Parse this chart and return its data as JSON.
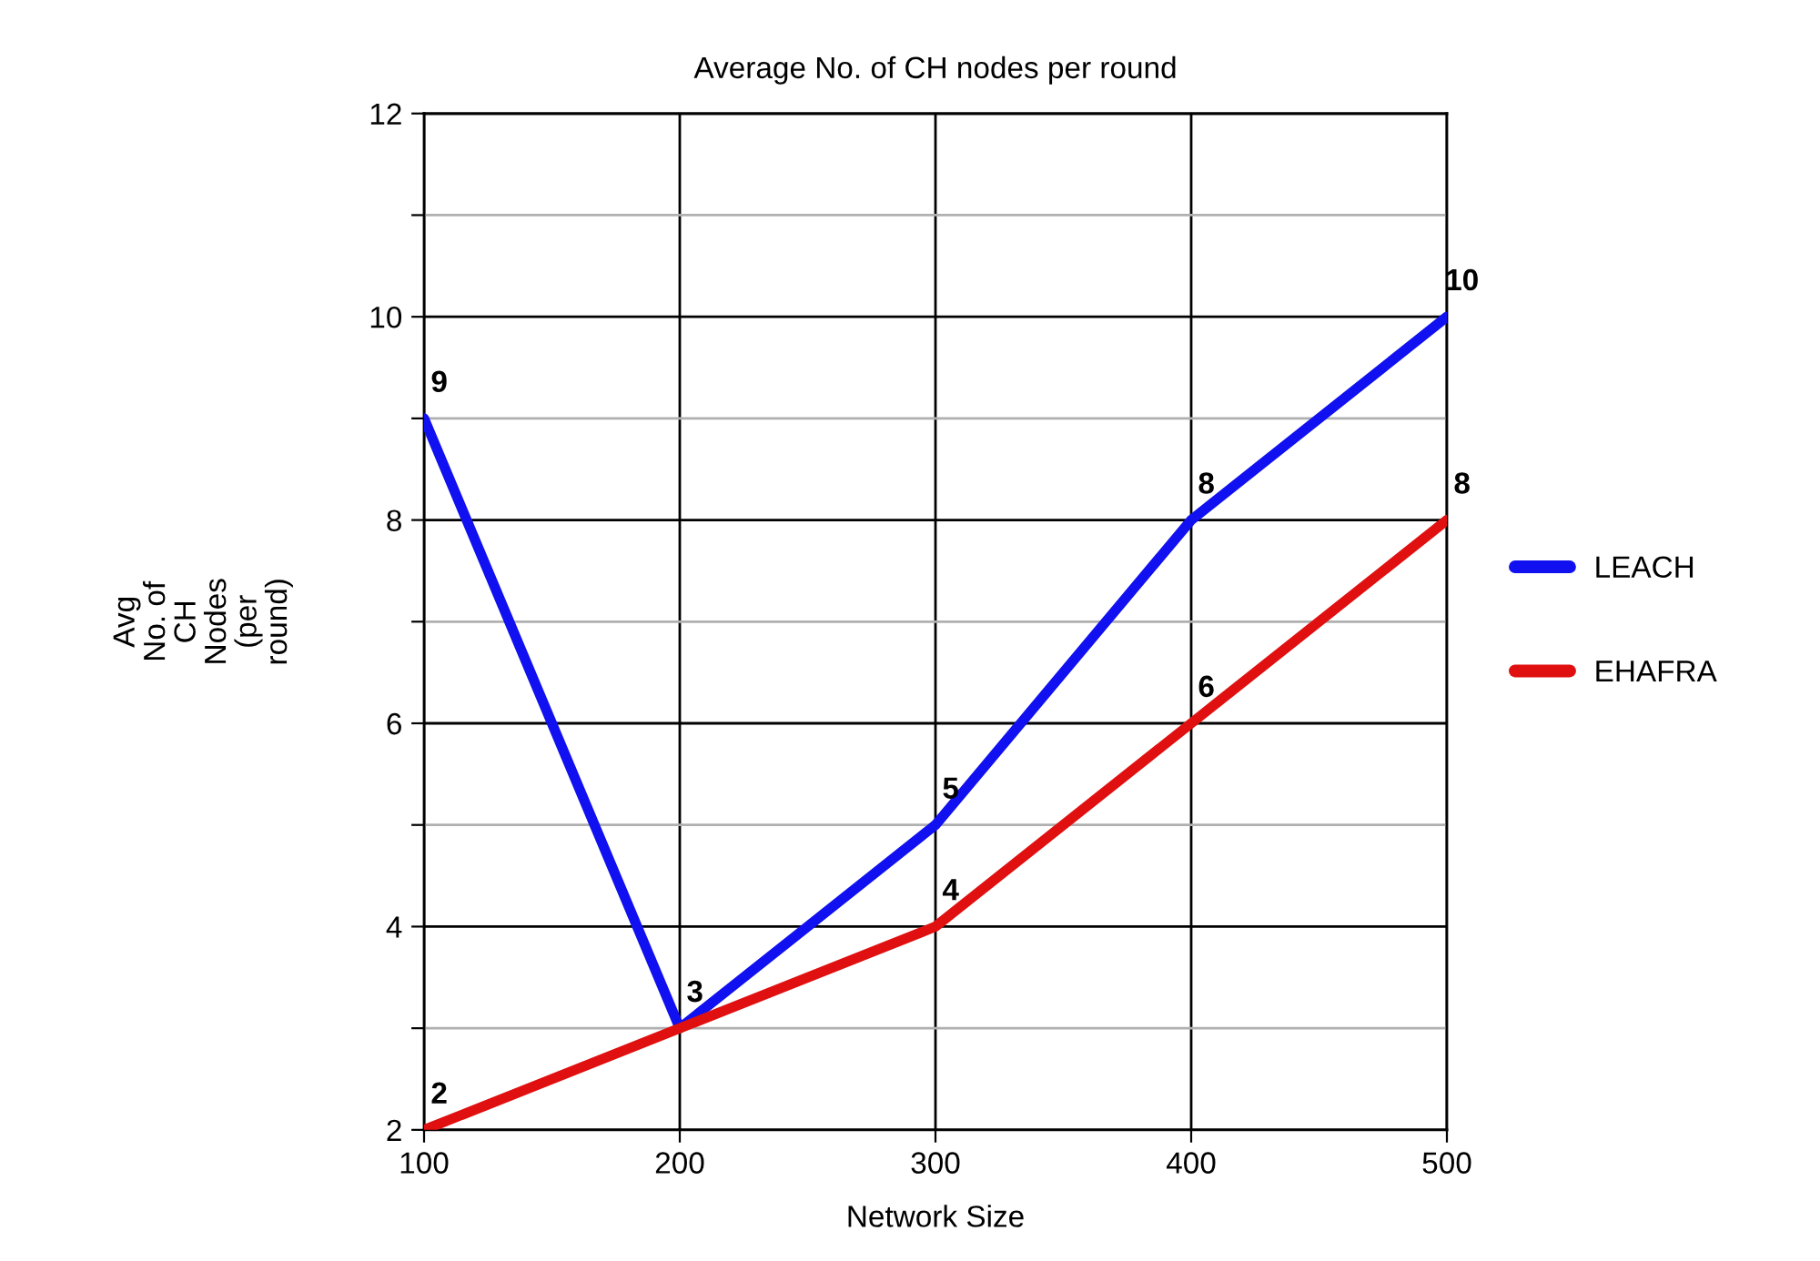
{
  "chart_data": {
    "type": "line",
    "title": "Average No. of CH nodes per round",
    "xlabel": "Network Size",
    "ylabel": "Avg\nNo. of\nCH\nNodes\n(per\nround)",
    "x": [
      100,
      200,
      300,
      400,
      500
    ],
    "series": [
      {
        "name": "LEACH",
        "color": "#1010f0",
        "values": [
          9,
          3,
          5,
          8,
          10
        ],
        "value_labels": [
          "9",
          "3",
          "5",
          "8",
          "10"
        ]
      },
      {
        "name": "EHAFRA",
        "color": "#e01010",
        "values": [
          2,
          3,
          4,
          6,
          8
        ],
        "value_labels": [
          "2",
          null,
          "4",
          "6",
          "8"
        ]
      }
    ],
    "xlim": [
      100,
      500
    ],
    "xticks": [
      100,
      200,
      300,
      400,
      500
    ],
    "ylim": [
      2,
      12
    ],
    "yticks": [
      2,
      {
        "value": 3,
        "label": null
      },
      4,
      {
        "value": 5,
        "label": null
      },
      6,
      {
        "value": 7,
        "label": null
      },
      8,
      {
        "value": 9,
        "label": null
      },
      10,
      {
        "value": 11,
        "label": null
      },
      12
    ],
    "grid": true,
    "legend": "right",
    "marker": "none",
    "line_style": "solid"
  }
}
